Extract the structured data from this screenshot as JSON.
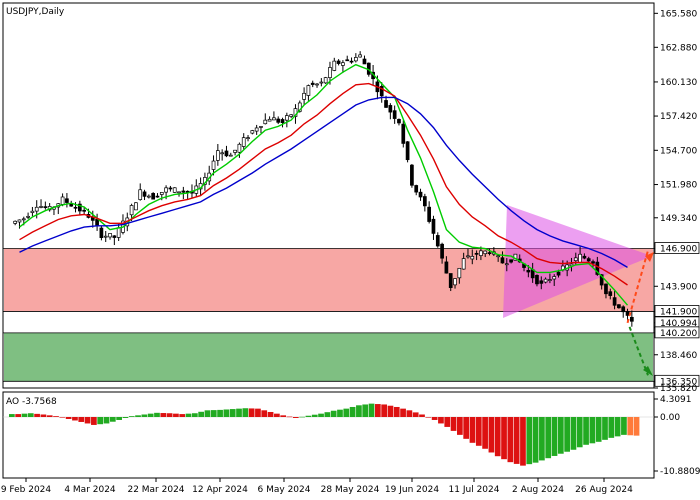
{
  "chart_data": {
    "type": "candlestick",
    "title": "USDJPY,Daily",
    "x_labels": [
      "9 Feb 2024",
      "4 Mar 2024",
      "22 Mar 2024",
      "12 Apr 2024",
      "6 May 2024",
      "28 May 2024",
      "19 Jun 2024",
      "11 Jul 2024",
      "2 Aug 2024",
      "26 Aug 2024"
    ],
    "y_ticks": [
      "165.580",
      "162.880",
      "160.130",
      "157.420",
      "154.700",
      "151.980",
      "149.340",
      "146.900",
      "143.900",
      "141.900",
      "140.994",
      "140.200",
      "138.460",
      "136.350",
      "135.820"
    ],
    "price_ylim": [
      135.82,
      166.4
    ],
    "levels": {
      "resistance": 146.9,
      "support_high": 141.9,
      "current_price": 140.994,
      "support_low": 140.2,
      "target": 136.35
    },
    "series": [
      {
        "name": "USDJPY",
        "type": "candles",
        "close": [
          149.3,
          150.4,
          150.0,
          150.8,
          150.2,
          149.5,
          148.0,
          147.8,
          149.5,
          151.4,
          151.0,
          151.6,
          151.5,
          151.3,
          152.3,
          154.7,
          154.3,
          155.5,
          156.6,
          157.3,
          156.9,
          157.9,
          159.8,
          160.0,
          161.6,
          161.8,
          162.2,
          160.3,
          158.2,
          157.0,
          152.1,
          150.2,
          147.1,
          143.9,
          146.0,
          146.5,
          146.7,
          145.8,
          146.2,
          145.0,
          144.0,
          144.8,
          145.5,
          146.3,
          145.9,
          143.3,
          142.2,
          140.994
        ]
      },
      {
        "name": "MA fast",
        "type": "line",
        "color": "#00cc00",
        "values": [
          148.6,
          149.4,
          149.9,
          150.3,
          150.5,
          150.2,
          149.3,
          148.4,
          148.6,
          149.6,
          150.4,
          150.9,
          151.2,
          151.3,
          151.7,
          152.9,
          153.6,
          154.4,
          155.4,
          156.3,
          156.6,
          157.1,
          158.3,
          159.1,
          160.2,
          160.9,
          161.5,
          161.1,
          160.0,
          158.9,
          156.3,
          154.1,
          151.4,
          148.4,
          147.4,
          147.0,
          146.9,
          146.4,
          146.3,
          145.7,
          145.0,
          145.0,
          145.2,
          145.6,
          145.7,
          144.7,
          143.6,
          142.4
        ]
      },
      {
        "name": "MA medium",
        "type": "line",
        "color": "#dd0000",
        "values": [
          147.6,
          148.2,
          148.7,
          149.2,
          149.5,
          149.6,
          149.3,
          148.9,
          148.9,
          149.4,
          149.9,
          150.3,
          150.6,
          150.8,
          151.1,
          151.9,
          152.5,
          153.2,
          154.0,
          154.8,
          155.3,
          155.9,
          156.8,
          157.5,
          158.4,
          159.2,
          159.9,
          160.0,
          159.6,
          159.0,
          157.5,
          155.9,
          154.0,
          151.8,
          150.4,
          149.4,
          148.7,
          147.9,
          147.4,
          146.8,
          146.1,
          145.8,
          145.7,
          145.8,
          145.8,
          145.3,
          144.7,
          144.0
        ]
      },
      {
        "name": "MA slow",
        "type": "line",
        "color": "#0000cc",
        "values": [
          146.6,
          147.1,
          147.5,
          147.9,
          148.3,
          148.6,
          148.7,
          148.7,
          148.8,
          149.1,
          149.4,
          149.7,
          150.0,
          150.3,
          150.6,
          151.2,
          151.7,
          152.3,
          152.9,
          153.6,
          154.2,
          154.8,
          155.5,
          156.2,
          156.9,
          157.6,
          158.3,
          158.7,
          158.9,
          158.9,
          158.4,
          157.6,
          156.5,
          155.1,
          153.9,
          152.8,
          151.8,
          150.8,
          149.9,
          149.1,
          148.4,
          147.9,
          147.5,
          147.2,
          146.9,
          146.5,
          146.0,
          145.4
        ]
      }
    ],
    "oscillator": {
      "label": "AO -3.7568",
      "ylim": [
        -10.8809,
        4.3091
      ],
      "ticks": [
        "4.3091",
        "0.00",
        "-10.8809"
      ],
      "values": [
        0.7,
        0.9,
        0.6,
        0.2,
        -0.4,
        -1.0,
        -1.6,
        -1.3,
        -0.6,
        0.2,
        0.6,
        1.0,
        0.9,
        0.7,
        0.9,
        1.6,
        1.7,
        1.9,
        2.1,
        2.0,
        1.2,
        0.4,
        -0.2,
        0.3,
        0.8,
        1.5,
        2.0,
        2.8,
        3.2,
        3.0,
        2.4,
        1.6,
        0.6,
        -0.6,
        -2.0,
        -3.6,
        -5.2,
        -6.4,
        -7.9,
        -9.1,
        -9.8,
        -9.2,
        -8.3,
        -7.4,
        -6.6,
        -5.6,
        -5.0,
        -4.2,
        -3.6,
        -3.7568
      ]
    }
  }
}
